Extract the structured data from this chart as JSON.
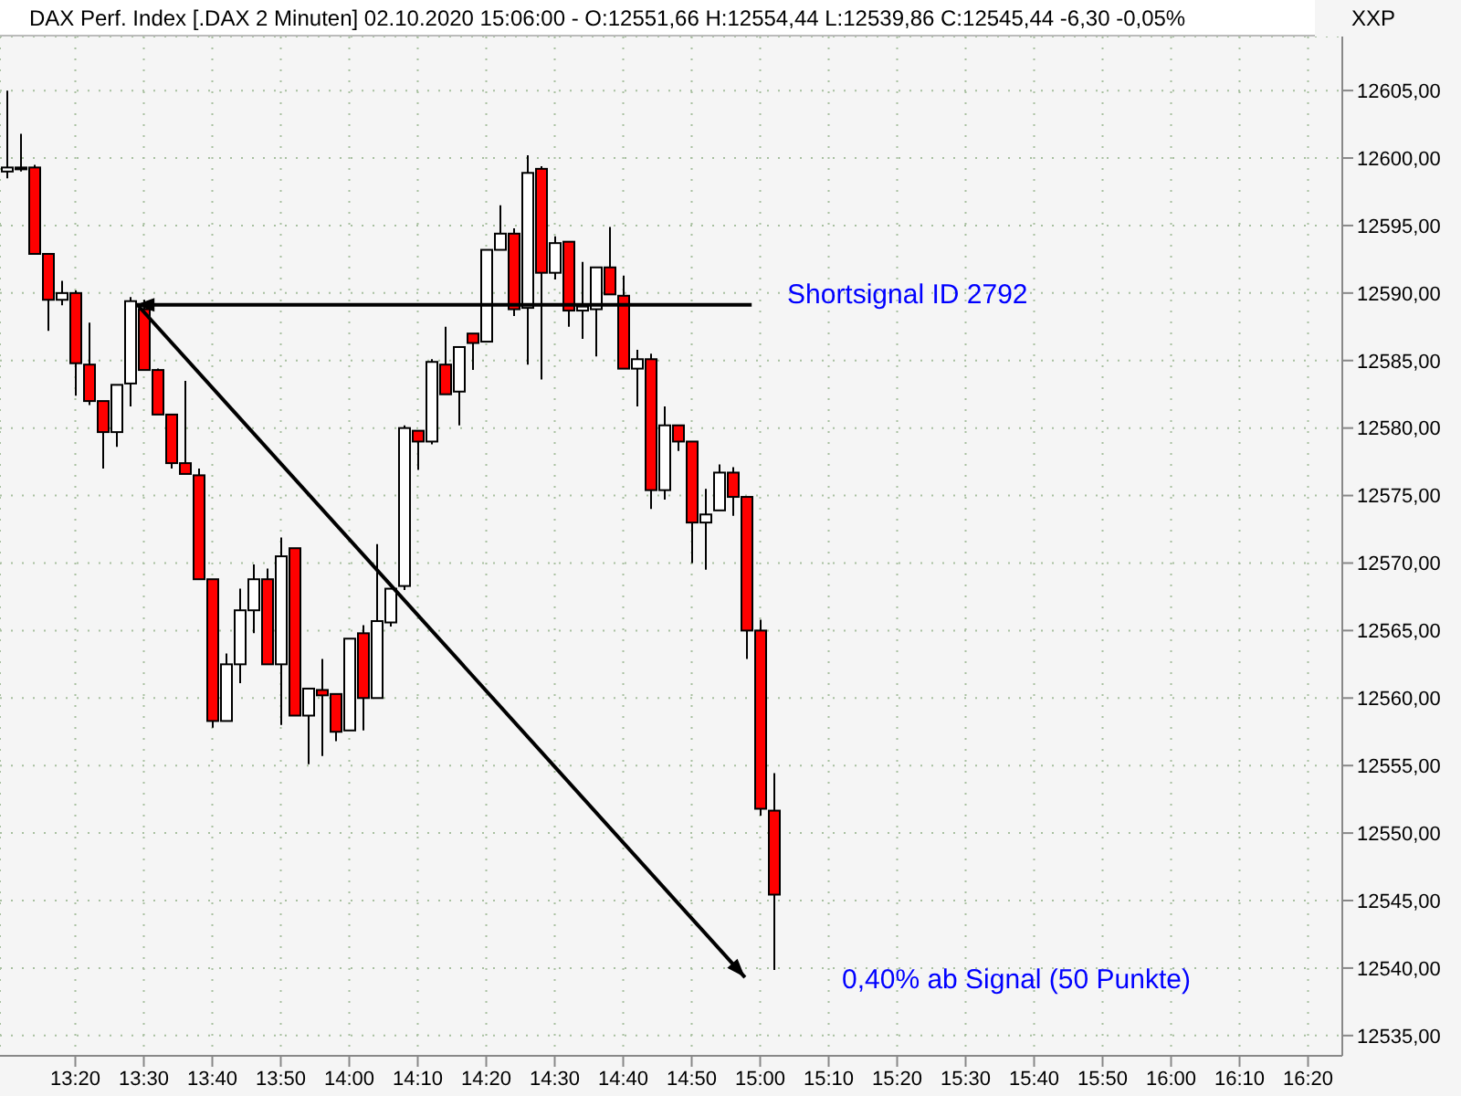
{
  "chart_data": {
    "type": "candlestick",
    "title": "DAX Perf. Index [.DAX  2 Minuten] 02.10.2020 15:06:00 - O:12551,66 H:12554,44 L:12539,86 C:12545,44 -6,30 -0,05%",
    "ylabel": "XXP",
    "x": [
      "2020-10-02T13:10",
      "2020-10-02T13:12",
      "2020-10-02T13:14",
      "2020-10-02T13:16",
      "2020-10-02T13:18",
      "2020-10-02T13:20",
      "2020-10-02T13:22",
      "2020-10-02T13:24",
      "2020-10-02T13:26",
      "2020-10-02T13:28",
      "2020-10-02T13:30",
      "2020-10-02T13:32",
      "2020-10-02T13:34",
      "2020-10-02T13:36",
      "2020-10-02T13:38",
      "2020-10-02T13:40",
      "2020-10-02T13:42",
      "2020-10-02T13:44",
      "2020-10-02T13:46",
      "2020-10-02T13:48",
      "2020-10-02T13:50",
      "2020-10-02T13:52",
      "2020-10-02T13:54",
      "2020-10-02T13:56",
      "2020-10-02T13:58",
      "2020-10-02T14:00",
      "2020-10-02T14:02",
      "2020-10-02T14:04",
      "2020-10-02T14:06",
      "2020-10-02T14:08",
      "2020-10-02T14:10",
      "2020-10-02T14:12",
      "2020-10-02T14:14",
      "2020-10-02T14:16",
      "2020-10-02T14:18",
      "2020-10-02T14:20",
      "2020-10-02T14:22",
      "2020-10-02T14:24",
      "2020-10-02T14:26",
      "2020-10-02T14:28",
      "2020-10-02T14:30",
      "2020-10-02T14:32",
      "2020-10-02T14:34",
      "2020-10-02T14:36",
      "2020-10-02T14:38",
      "2020-10-02T14:40",
      "2020-10-02T14:42",
      "2020-10-02T14:44",
      "2020-10-02T14:46",
      "2020-10-02T14:48",
      "2020-10-02T14:50",
      "2020-10-02T14:52",
      "2020-10-02T14:54",
      "2020-10-02T14:56",
      "2020-10-02T14:58",
      "2020-10-02T15:00",
      "2020-10-02T15:02"
    ],
    "ohlc": [
      [
        12599.0,
        12605.0,
        12598.5,
        12599.3
      ],
      [
        12599.2,
        12601.8,
        12599.0,
        12599.3
      ],
      [
        12599.3,
        12599.5,
        12592.9,
        12592.9
      ],
      [
        12592.9,
        12592.9,
        12587.2,
        12589.5
      ],
      [
        12589.5,
        12590.9,
        12589.1,
        12590.0
      ],
      [
        12590.0,
        12590.2,
        12582.4,
        12584.8
      ],
      [
        12584.7,
        12587.8,
        12581.7,
        12582.0
      ],
      [
        12582.0,
        12582.0,
        12577.0,
        12579.7
      ],
      [
        12579.7,
        12583.2,
        12578.6,
        12583.2
      ],
      [
        12583.3,
        12589.7,
        12581.6,
        12589.4
      ],
      [
        12588.8,
        12589.5,
        12584.3,
        12584.3
      ],
      [
        12584.3,
        12584.4,
        12581.0,
        12581.0
      ],
      [
        12581.0,
        12581.0,
        12577.0,
        12577.4
      ],
      [
        12577.4,
        12583.5,
        12576.6,
        12576.6
      ],
      [
        12576.5,
        12577.0,
        12568.8,
        12568.8
      ],
      [
        12568.8,
        12568.8,
        12557.8,
        12558.3
      ],
      [
        12558.3,
        12563.3,
        12558.3,
        12562.5
      ],
      [
        12562.5,
        12568.1,
        12561.1,
        12566.5
      ],
      [
        12566.5,
        12569.9,
        12564.8,
        12568.8
      ],
      [
        12568.8,
        12569.6,
        12562.5,
        12562.5
      ],
      [
        12562.5,
        12571.9,
        12558.0,
        12570.5
      ],
      [
        12571.1,
        12571.1,
        12558.7,
        12558.7
      ],
      [
        12558.7,
        12560.7,
        12555.1,
        12560.7
      ],
      [
        12560.6,
        12562.9,
        12555.7,
        12560.2
      ],
      [
        12560.3,
        12560.3,
        12556.8,
        12557.5
      ],
      [
        12557.6,
        12564.4,
        12557.6,
        12564.4
      ],
      [
        12564.8,
        12565.4,
        12557.6,
        12560.0
      ],
      [
        12560.0,
        12571.4,
        12560.0,
        12565.7
      ],
      [
        12565.6,
        12568.1,
        12565.3,
        12568.1
      ],
      [
        12568.3,
        12580.2,
        12568.0,
        12580.0
      ],
      [
        12579.8,
        12579.8,
        12576.9,
        12579.0
      ],
      [
        12579.0,
        12585.1,
        12578.8,
        12584.9
      ],
      [
        12584.7,
        12587.5,
        12582.5,
        12582.5
      ],
      [
        12582.7,
        12586.0,
        12580.2,
        12586.0
      ],
      [
        12587.0,
        12587.0,
        12584.3,
        12586.3
      ],
      [
        12586.4,
        12593.2,
        12586.4,
        12593.2
      ],
      [
        12593.2,
        12596.5,
        12593.2,
        12594.4
      ],
      [
        12594.4,
        12594.8,
        12588.3,
        12588.8
      ],
      [
        12588.9,
        12600.2,
        12584.7,
        12598.9
      ],
      [
        12599.2,
        12599.4,
        12583.6,
        12591.5
      ],
      [
        12591.5,
        12594.2,
        12591.0,
        12593.7
      ],
      [
        12593.8,
        12593.8,
        12587.5,
        12588.7
      ],
      [
        12588.7,
        12592.3,
        12586.6,
        12589.0
      ],
      [
        12588.8,
        12591.9,
        12585.3,
        12591.9
      ],
      [
        12591.9,
        12594.9,
        12589.9,
        12589.9
      ],
      [
        12589.8,
        12591.3,
        12584.4,
        12584.4
      ],
      [
        12584.4,
        12585.8,
        12581.6,
        12585.1
      ],
      [
        12585.1,
        12585.5,
        12574.0,
        12575.4
      ],
      [
        12575.4,
        12581.6,
        12574.7,
        12580.2
      ],
      [
        12580.2,
        12580.2,
        12578.3,
        12579.0
      ],
      [
        12579.0,
        12579.0,
        12570.0,
        12573.0
      ],
      [
        12573.0,
        12575.5,
        12569.5,
        12573.6
      ],
      [
        12573.9,
        12577.3,
        12573.9,
        12576.7
      ],
      [
        12576.7,
        12577.1,
        12573.5,
        12574.9
      ],
      [
        12574.9,
        12574.9,
        12562.9,
        12565.0
      ],
      [
        12565.0,
        12565.8,
        12551.3,
        12551.8
      ],
      [
        12551.66,
        12554.44,
        12539.86,
        12545.44
      ]
    ],
    "xlim": [
      "2020-10-02T13:09",
      "2020-10-02T16:25"
    ],
    "xticks": [
      {
        "value": "2020-10-02T13:20",
        "label": "13:20"
      },
      {
        "value": "2020-10-02T13:30",
        "label": "13:30"
      },
      {
        "value": "2020-10-02T13:40",
        "label": "13:40"
      },
      {
        "value": "2020-10-02T13:50",
        "label": "13:50"
      },
      {
        "value": "2020-10-02T14:00",
        "label": "14:00"
      },
      {
        "value": "2020-10-02T14:10",
        "label": "14:10"
      },
      {
        "value": "2020-10-02T14:20",
        "label": "14:20"
      },
      {
        "value": "2020-10-02T14:30",
        "label": "14:30"
      },
      {
        "value": "2020-10-02T14:40",
        "label": "14:40"
      },
      {
        "value": "2020-10-02T14:50",
        "label": "14:50"
      },
      {
        "value": "2020-10-02T15:00",
        "label": "15:00"
      },
      {
        "value": "2020-10-02T15:10",
        "label": "15:10"
      },
      {
        "value": "2020-10-02T15:20",
        "label": "15:20"
      },
      {
        "value": "2020-10-02T15:30",
        "label": "15:30"
      },
      {
        "value": "2020-10-02T15:40",
        "label": "15:40"
      },
      {
        "value": "2020-10-02T15:50",
        "label": "15:50"
      },
      {
        "value": "2020-10-02T16:00",
        "label": "16:00"
      },
      {
        "value": "2020-10-02T16:10",
        "label": "16:10"
      },
      {
        "value": "2020-10-02T16:20",
        "label": "16:20"
      }
    ],
    "ylim": [
      12533.5,
      12609
    ],
    "yticks": [
      {
        "value": 12535,
        "label": "12535,00"
      },
      {
        "value": 12540,
        "label": "12540,00"
      },
      {
        "value": 12545,
        "label": "12545,00"
      },
      {
        "value": 12550,
        "label": "12550,00"
      },
      {
        "value": 12555,
        "label": "12555,00"
      },
      {
        "value": 12560,
        "label": "12560,00"
      },
      {
        "value": 12565,
        "label": "12565,00"
      },
      {
        "value": 12570,
        "label": "12570,00"
      },
      {
        "value": 12575,
        "label": "12575,00"
      },
      {
        "value": 12580,
        "label": "12580,00"
      },
      {
        "value": 12585,
        "label": "12585,00"
      },
      {
        "value": 12590,
        "label": "12590,00"
      },
      {
        "value": 12595,
        "label": "12595,00"
      },
      {
        "value": 12600,
        "label": "12600,00"
      },
      {
        "value": 12605,
        "label": "12605,00"
      }
    ],
    "grid": true,
    "annotations": [
      "Shortsignal ID 2792",
      "0,40% ab Signal (50 Punkte)"
    ]
  }
}
